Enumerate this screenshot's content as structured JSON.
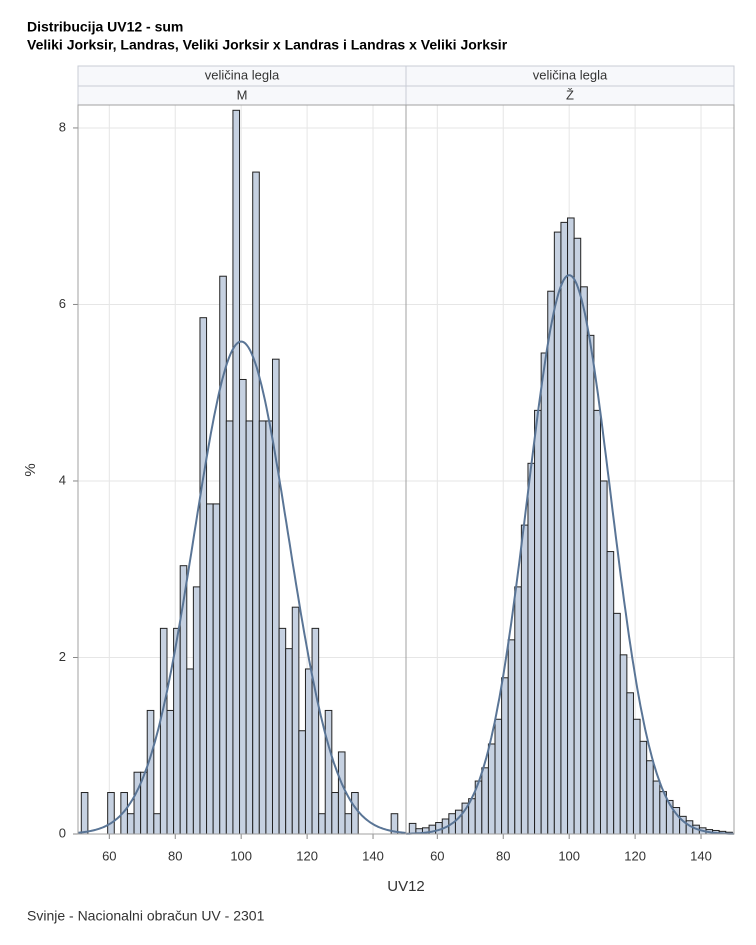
{
  "header": {
    "title": "Distribucija UV12 - sum",
    "subtitle": "Veliki Jorksir, Landras, Veliki Jorksir x Landras i Landras x Veliki Jorksir"
  },
  "y_label": "%",
  "x_label": "UV12",
  "footnote": "Svinje - Nacionalni obračun UV - 2301",
  "chart_data": [
    {
      "type": "histogram",
      "panel_header": "veličina legla",
      "panel_label": "M",
      "bins": [
        51.5,
        53.5,
        55.5,
        57.5,
        59.5,
        61.5,
        63.5,
        65.5,
        67.5,
        69.5,
        71.5,
        73.5,
        75.5,
        77.5,
        79.5,
        81.5,
        83.5,
        85.5,
        87.5,
        89.5,
        91.5,
        93.5,
        95.5,
        97.5,
        99.5,
        101.5,
        103.5,
        105.5,
        107.5,
        109.5,
        111.5,
        113.5,
        115.5,
        117.5,
        119.5,
        121.5,
        123.5,
        125.5,
        127.5,
        129.5,
        131.5,
        133.5,
        135.5,
        137.5,
        139.5,
        141.5,
        143.5,
        145.5,
        147.5,
        149.5
      ],
      "values": [
        0.47,
        0,
        0,
        0,
        0.47,
        0,
        0.47,
        0.23,
        0.7,
        0.7,
        1.4,
        0.23,
        2.33,
        1.4,
        2.33,
        3.04,
        1.87,
        2.8,
        5.85,
        3.74,
        3.74,
        6.32,
        4.68,
        8.2,
        5.15,
        4.68,
        7.5,
        4.68,
        4.68,
        5.38,
        2.33,
        2.1,
        2.57,
        1.17,
        1.87,
        2.33,
        0.23,
        1.4,
        0.47,
        0.93,
        0.23,
        0.47,
        0,
        0,
        0,
        0,
        0,
        0.23,
        0
      ],
      "density": {
        "mean": 100,
        "sd": 14.3
      },
      "xlim": [
        50.5,
        150
      ],
      "ylim": [
        0,
        8.26
      ],
      "xticks": [
        60,
        80,
        100,
        120,
        140
      ],
      "yticks": [
        0,
        2,
        4,
        6,
        8
      ],
      "show_yticks": true,
      "grid": true,
      "bar_color": "#c6d1e1",
      "curve_color": "#5a7596"
    },
    {
      "type": "histogram",
      "panel_header": "veličina legla",
      "panel_label": "Ž",
      "bins": [
        51.5,
        53.5,
        55.5,
        57.5,
        59.5,
        61.5,
        63.5,
        65.5,
        67.5,
        69.5,
        71.5,
        73.5,
        75.5,
        77.5,
        79.5,
        81.5,
        83.5,
        85.5,
        87.5,
        89.5,
        91.5,
        93.5,
        95.5,
        97.5,
        99.5,
        101.5,
        103.5,
        105.5,
        107.5,
        109.5,
        111.5,
        113.5,
        115.5,
        117.5,
        119.5,
        121.5,
        123.5,
        125.5,
        127.5,
        129.5,
        131.5,
        133.5,
        135.5,
        137.5,
        139.5,
        141.5,
        143.5,
        145.5,
        147.5,
        149.5
      ],
      "values": [
        0.12,
        0.06,
        0.07,
        0.1,
        0.13,
        0.17,
        0.23,
        0.27,
        0.35,
        0.4,
        0.6,
        0.75,
        1.02,
        1.3,
        1.77,
        2.2,
        2.8,
        3.5,
        4.2,
        4.8,
        5.45,
        6.15,
        6.82,
        6.93,
        6.98,
        6.75,
        6.2,
        5.65,
        4.8,
        4.0,
        3.2,
        2.5,
        2.03,
        1.6,
        1.3,
        1.05,
        0.83,
        0.6,
        0.48,
        0.38,
        0.3,
        0.2,
        0.15,
        0.1,
        0.07,
        0.05,
        0.04,
        0.03,
        0.02
      ],
      "density": {
        "mean": 100,
        "sd": 12.6
      },
      "xlim": [
        50.5,
        150
      ],
      "ylim": [
        0,
        8.26
      ],
      "xticks": [
        60,
        80,
        100,
        120,
        140
      ],
      "yticks": [
        0,
        2,
        4,
        6,
        8
      ],
      "show_yticks": false,
      "grid": true,
      "bar_color": "#c6d1e1",
      "curve_color": "#5a7596"
    }
  ]
}
